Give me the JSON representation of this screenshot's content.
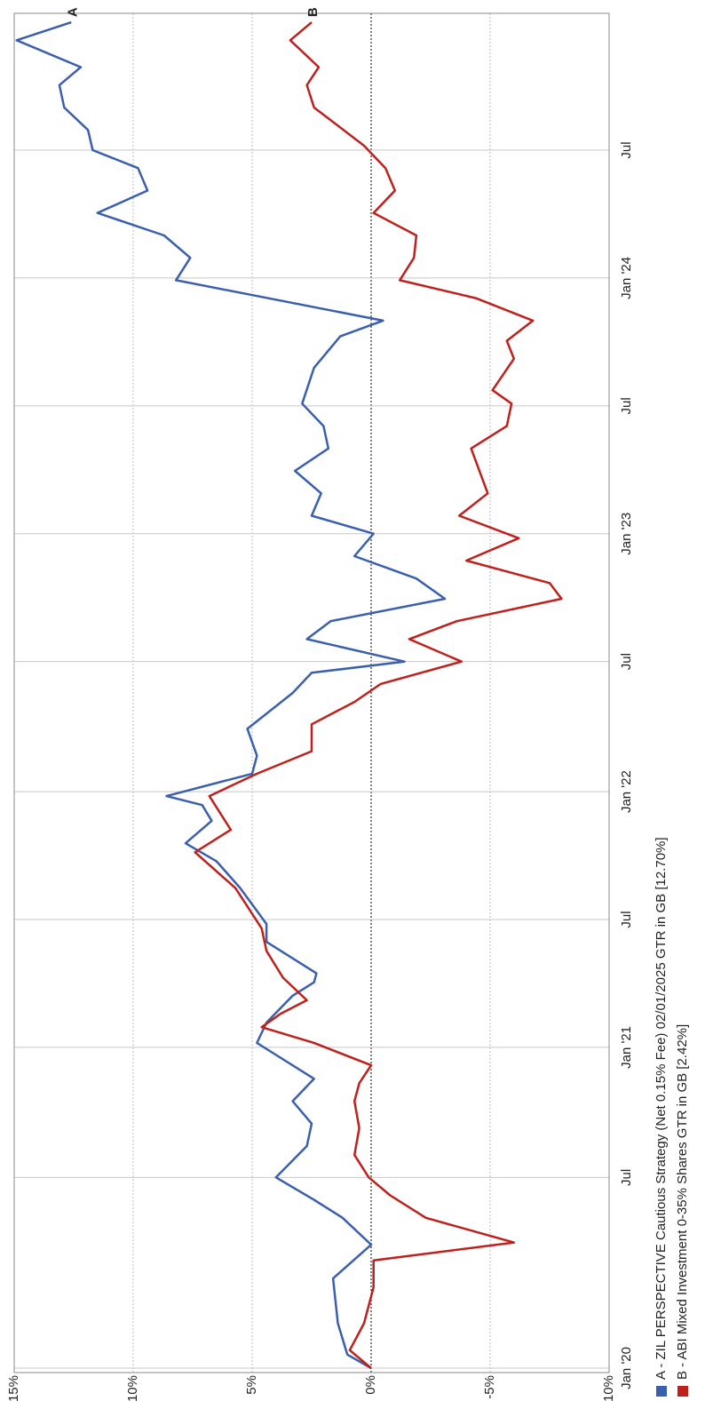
{
  "chart_data": {
    "type": "line",
    "xlim": [
      -0.2,
      60.4
    ],
    "ylim": [
      -10,
      15
    ],
    "xticks": [
      {
        "value": 0,
        "label": "Jan '20"
      },
      {
        "value": 8.5,
        "label": "Jul"
      },
      {
        "value": 14.3,
        "label": "Jan '21"
      },
      {
        "value": 20.0,
        "label": "Jul"
      },
      {
        "value": 25.7,
        "label": "Jan '22"
      },
      {
        "value": 31.5,
        "label": "Jul"
      },
      {
        "value": 37.2,
        "label": "Jan '23"
      },
      {
        "value": 42.9,
        "label": "Jul"
      },
      {
        "value": 48.6,
        "label": "Jan '24"
      },
      {
        "value": 54.3,
        "label": "Jul"
      }
    ],
    "yticks": [
      {
        "value": 15,
        "label": "15%"
      },
      {
        "value": 10,
        "label": "10%"
      },
      {
        "value": 5,
        "label": "5%"
      },
      {
        "value": 0,
        "label": "0%"
      },
      {
        "value": -5,
        "label": "-5%"
      },
      {
        "value": -10,
        "label": "-10%"
      }
    ],
    "grid": true,
    "zero_line": true,
    "rotated": true,
    "series": [
      {
        "name": "A - ZIL PERSPECTIVE Cautious Strategy (Net 0.15% Fee) 02/01/2025 GTR in GB [12.70%]",
        "end_label": "A",
        "color": "#3a5fae",
        "x": [
          0,
          0.6,
          2.0,
          4.0,
          5.5,
          6.7,
          7.5,
          8.5,
          9.9,
          10.9,
          11.9,
          12.9,
          14.1,
          14.5,
          15.4,
          16.6,
          17.2,
          17.6,
          19.0,
          19.8,
          21.4,
          22.6,
          23.4,
          24.4,
          25.1,
          25.5,
          26.5,
          27.3,
          28.5,
          30.1,
          31.0,
          31.5,
          32.5,
          33.3,
          34.3,
          35.2,
          36.2,
          37.2,
          38.0,
          39.0,
          40.0,
          41.0,
          42.0,
          43.0,
          44.6,
          46.0,
          46.7,
          48.5,
          49.5,
          50.5,
          51.5,
          52.5,
          53.5,
          54.3,
          55.2,
          56.2,
          57.2,
          58.0,
          59.2,
          60.0
        ],
        "values": [
          0,
          1.0,
          1.4,
          1.6,
          0,
          1.2,
          2.4,
          4.0,
          2.7,
          2.5,
          3.3,
          2.4,
          4.2,
          4.8,
          4.4,
          3.3,
          2.4,
          2.3,
          4.4,
          4.4,
          5.5,
          6.5,
          7.8,
          6.7,
          7.1,
          8.6,
          5.0,
          4.8,
          5.2,
          3.3,
          2.5,
          -1.4,
          2.7,
          1.7,
          -3.1,
          -1.9,
          0.7,
          -0.1,
          2.5,
          2.1,
          3.2,
          1.8,
          2.0,
          2.9,
          2.4,
          1.3,
          -0.5,
          8.2,
          7.6,
          8.7,
          11.5,
          9.4,
          9.8,
          11.7,
          11.9,
          12.9,
          13.1,
          12.2,
          14.9,
          12.6
        ]
      },
      {
        "name": "B - ABI Mixed Investment 0-35% Shares GTR in GB [2.42%]",
        "end_label": "B",
        "color": "#c0201c",
        "x": [
          0,
          0.8,
          2.0,
          3.6,
          4.8,
          5.6,
          6.7,
          7.7,
          8.5,
          9.5,
          10.7,
          11.9,
          12.7,
          13.5,
          14.5,
          15.2,
          15.8,
          16.4,
          17.4,
          18.6,
          19.6,
          21.4,
          23.0,
          24.0,
          25.5,
          26.5,
          27.5,
          28.7,
          29.7,
          30.5,
          31.5,
          32.5,
          33.3,
          34.3,
          35.0,
          36.0,
          37.0,
          38.0,
          39.0,
          41.0,
          42.0,
          43.0,
          43.6,
          45.0,
          45.8,
          46.7,
          47.7,
          48.5,
          49.5,
          50.5,
          51.5,
          52.5,
          53.5,
          54.5,
          56.2,
          57.2,
          58.0,
          59.2,
          60.0
        ],
        "values": [
          0,
          0.9,
          0.3,
          -0.1,
          -0.1,
          -6.0,
          -2.3,
          -0.8,
          0.1,
          0.7,
          0.5,
          0.7,
          0.5,
          0,
          2.4,
          4.6,
          3.8,
          2.7,
          3.7,
          4.4,
          4.6,
          5.7,
          7.4,
          5.9,
          6.8,
          4.8,
          2.5,
          2.5,
          0.7,
          -0.4,
          -3.8,
          -1.6,
          -3.6,
          -8.0,
          -7.5,
          -4.0,
          -6.2,
          -3.7,
          -4.9,
          -4.2,
          -5.7,
          -5.9,
          -5.1,
          -6.0,
          -5.7,
          -6.8,
          -4.4,
          -1.2,
          -1.8,
          -1.9,
          -0.1,
          -1.0,
          -0.6,
          0.3,
          2.4,
          2.7,
          2.2,
          3.4,
          2.5
        ]
      }
    ]
  }
}
